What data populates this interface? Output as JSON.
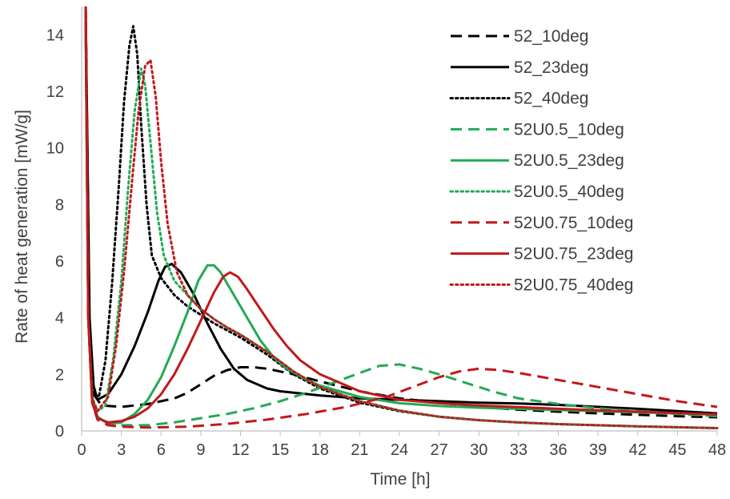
{
  "chart_data": {
    "type": "line",
    "xlabel": "Time [h]",
    "ylabel": "Rate of heat generation [mW/g]",
    "xlim": [
      0,
      48
    ],
    "ylim": [
      0,
      15
    ],
    "x_ticks": [
      "0",
      "3",
      "6",
      "9",
      "12",
      "15",
      "18",
      "21",
      "24",
      "27",
      "30",
      "33",
      "36",
      "39",
      "42",
      "45",
      "48"
    ],
    "y_ticks": [
      "0",
      "2",
      "4",
      "6",
      "8",
      "10",
      "12",
      "14"
    ],
    "grid": false,
    "legend_position": "top-right",
    "series": [
      {
        "name": "52_10deg",
        "color": "#000000",
        "dash": "dashed",
        "points": [
          [
            0.3,
            15
          ],
          [
            0.6,
            3
          ],
          [
            0.9,
            1.3
          ],
          [
            1.5,
            0.9
          ],
          [
            3,
            0.85
          ],
          [
            5,
            0.95
          ],
          [
            7,
            1.15
          ],
          [
            8,
            1.35
          ],
          [
            9,
            1.65
          ],
          [
            10,
            1.95
          ],
          [
            11,
            2.15
          ],
          [
            12,
            2.25
          ],
          [
            13,
            2.25
          ],
          [
            14,
            2.2
          ],
          [
            15,
            2.1
          ],
          [
            16,
            2.0
          ],
          [
            18,
            1.75
          ],
          [
            21,
            1.4
          ],
          [
            24,
            1.15
          ],
          [
            27,
            1.0
          ],
          [
            30,
            0.85
          ],
          [
            33,
            0.75
          ],
          [
            36,
            0.68
          ],
          [
            39,
            0.62
          ],
          [
            42,
            0.57
          ],
          [
            45,
            0.52
          ],
          [
            48,
            0.48
          ]
        ]
      },
      {
        "name": "52_23deg",
        "color": "#000000",
        "dash": "solid",
        "points": [
          [
            0.3,
            15
          ],
          [
            0.6,
            4
          ],
          [
            0.9,
            1.6
          ],
          [
            1.2,
            1.1
          ],
          [
            2,
            1.3
          ],
          [
            3,
            2.0
          ],
          [
            4,
            3.0
          ],
          [
            5,
            4.2
          ],
          [
            5.8,
            5.3
          ],
          [
            6.3,
            5.8
          ],
          [
            6.8,
            5.9
          ],
          [
            7.5,
            5.6
          ],
          [
            8.5,
            4.8
          ],
          [
            9.5,
            3.8
          ],
          [
            10.5,
            2.9
          ],
          [
            11.5,
            2.2
          ],
          [
            12.5,
            1.8
          ],
          [
            14,
            1.5
          ],
          [
            15,
            1.4
          ],
          [
            18,
            1.25
          ],
          [
            21,
            1.15
          ],
          [
            24,
            1.1
          ],
          [
            27,
            1.05
          ],
          [
            30,
            1.0
          ],
          [
            33,
            0.97
          ],
          [
            36,
            0.92
          ],
          [
            39,
            0.85
          ],
          [
            42,
            0.78
          ],
          [
            45,
            0.7
          ],
          [
            48,
            0.62
          ]
        ]
      },
      {
        "name": "52_40deg",
        "color": "#000000",
        "dash": "dotted",
        "points": [
          [
            0.3,
            15
          ],
          [
            0.6,
            3
          ],
          [
            0.9,
            1.3
          ],
          [
            1.3,
            1.2
          ],
          [
            1.8,
            2.5
          ],
          [
            2.3,
            5.2
          ],
          [
            2.8,
            8.6
          ],
          [
            3.2,
            11.6
          ],
          [
            3.6,
            13.6
          ],
          [
            3.9,
            14.3
          ],
          [
            4.2,
            13.3
          ],
          [
            4.5,
            10.8
          ],
          [
            4.9,
            8.0
          ],
          [
            5.3,
            6.2
          ],
          [
            6,
            5.4
          ],
          [
            7,
            4.8
          ],
          [
            8,
            4.4
          ],
          [
            9,
            4.1
          ],
          [
            10,
            3.8
          ],
          [
            11,
            3.55
          ],
          [
            12,
            3.3
          ],
          [
            13,
            3.0
          ],
          [
            14,
            2.7
          ],
          [
            15,
            2.35
          ],
          [
            16,
            2.0
          ],
          [
            18,
            1.5
          ],
          [
            21,
            1.0
          ],
          [
            24,
            0.7
          ],
          [
            27,
            0.5
          ],
          [
            30,
            0.38
          ],
          [
            33,
            0.3
          ],
          [
            36,
            0.24
          ],
          [
            39,
            0.2
          ],
          [
            42,
            0.16
          ],
          [
            45,
            0.13
          ],
          [
            48,
            0.1
          ]
        ]
      },
      {
        "name": "52U0.5_10deg",
        "color": "#22aa55",
        "dash": "dashed",
        "points": [
          [
            0.3,
            14.5
          ],
          [
            0.5,
            4
          ],
          [
            0.8,
            1.2
          ],
          [
            1.2,
            0.5
          ],
          [
            2,
            0.25
          ],
          [
            3,
            0.2
          ],
          [
            5,
            0.2
          ],
          [
            7,
            0.3
          ],
          [
            9,
            0.45
          ],
          [
            11,
            0.6
          ],
          [
            13,
            0.8
          ],
          [
            15,
            1.05
          ],
          [
            17,
            1.35
          ],
          [
            19,
            1.7
          ],
          [
            21,
            2.05
          ],
          [
            22.5,
            2.3
          ],
          [
            24,
            2.35
          ],
          [
            25.5,
            2.2
          ],
          [
            27,
            2.0
          ],
          [
            29,
            1.7
          ],
          [
            31,
            1.4
          ],
          [
            33,
            1.15
          ],
          [
            36,
            0.95
          ],
          [
            39,
            0.8
          ],
          [
            42,
            0.7
          ],
          [
            45,
            0.6
          ],
          [
            48,
            0.52
          ]
        ]
      },
      {
        "name": "52U0.5_23deg",
        "color": "#22aa55",
        "dash": "solid",
        "points": [
          [
            0.3,
            14.5
          ],
          [
            0.5,
            4
          ],
          [
            0.8,
            1.0
          ],
          [
            1.2,
            0.5
          ],
          [
            2,
            0.25
          ],
          [
            3,
            0.3
          ],
          [
            4,
            0.6
          ],
          [
            5,
            1.1
          ],
          [
            6,
            1.9
          ],
          [
            7,
            3.0
          ],
          [
            8,
            4.2
          ],
          [
            8.8,
            5.3
          ],
          [
            9.5,
            5.85
          ],
          [
            10,
            5.85
          ],
          [
            10.5,
            5.6
          ],
          [
            11.5,
            4.8
          ],
          [
            12.5,
            4.0
          ],
          [
            13.5,
            3.2
          ],
          [
            14.5,
            2.6
          ],
          [
            15.5,
            2.2
          ],
          [
            17,
            1.8
          ],
          [
            18,
            1.6
          ],
          [
            21,
            1.2
          ],
          [
            24,
            0.98
          ],
          [
            27,
            0.88
          ],
          [
            30,
            0.82
          ],
          [
            33,
            0.78
          ],
          [
            36,
            0.74
          ],
          [
            39,
            0.7
          ],
          [
            42,
            0.66
          ],
          [
            45,
            0.62
          ],
          [
            48,
            0.58
          ]
        ]
      },
      {
        "name": "52U0.5_40deg",
        "color": "#22aa55",
        "dash": "dotted",
        "points": [
          [
            0.3,
            14.5
          ],
          [
            0.5,
            4
          ],
          [
            0.8,
            1.2
          ],
          [
            1.2,
            0.7
          ],
          [
            1.8,
            0.9
          ],
          [
            2.4,
            2.6
          ],
          [
            3,
            5.3
          ],
          [
            3.5,
            8.5
          ],
          [
            4,
            11.3
          ],
          [
            4.5,
            12.8
          ],
          [
            4.8,
            12.2
          ],
          [
            5.2,
            10.2
          ],
          [
            5.7,
            7.7
          ],
          [
            6.2,
            6.2
          ],
          [
            7,
            5.3
          ],
          [
            8,
            4.8
          ],
          [
            9,
            4.3
          ],
          [
            10,
            3.95
          ],
          [
            11,
            3.65
          ],
          [
            12,
            3.4
          ],
          [
            13,
            3.1
          ],
          [
            14,
            2.8
          ],
          [
            15,
            2.45
          ],
          [
            16,
            2.1
          ],
          [
            18,
            1.55
          ],
          [
            21,
            1.05
          ],
          [
            24,
            0.72
          ],
          [
            27,
            0.5
          ],
          [
            30,
            0.38
          ],
          [
            33,
            0.3
          ],
          [
            36,
            0.24
          ],
          [
            39,
            0.2
          ],
          [
            42,
            0.16
          ],
          [
            45,
            0.13
          ],
          [
            48,
            0.1
          ]
        ]
      },
      {
        "name": "52U0.75_10deg",
        "color": "#c0191c",
        "dash": "dashed",
        "points": [
          [
            0.3,
            15
          ],
          [
            0.5,
            4
          ],
          [
            0.8,
            1.0
          ],
          [
            1.2,
            0.4
          ],
          [
            2,
            0.2
          ],
          [
            3,
            0.15
          ],
          [
            5,
            0.12
          ],
          [
            8,
            0.15
          ],
          [
            11,
            0.25
          ],
          [
            14,
            0.4
          ],
          [
            17,
            0.6
          ],
          [
            20,
            0.85
          ],
          [
            23,
            1.2
          ],
          [
            25,
            1.55
          ],
          [
            27,
            1.9
          ],
          [
            28.5,
            2.1
          ],
          [
            30,
            2.2
          ],
          [
            31.5,
            2.15
          ],
          [
            33,
            2.05
          ],
          [
            36,
            1.8
          ],
          [
            39,
            1.55
          ],
          [
            42,
            1.3
          ],
          [
            45,
            1.05
          ],
          [
            48,
            0.85
          ]
        ]
      },
      {
        "name": "52U0.75_23deg",
        "color": "#c0191c",
        "dash": "solid",
        "points": [
          [
            0.3,
            15
          ],
          [
            0.5,
            4
          ],
          [
            0.8,
            1.0
          ],
          [
            1.2,
            0.45
          ],
          [
            2,
            0.3
          ],
          [
            3,
            0.35
          ],
          [
            4,
            0.5
          ],
          [
            5,
            0.8
          ],
          [
            6,
            1.3
          ],
          [
            7,
            2.0
          ],
          [
            8,
            2.9
          ],
          [
            9,
            3.9
          ],
          [
            10,
            4.9
          ],
          [
            10.7,
            5.45
          ],
          [
            11.2,
            5.6
          ],
          [
            11.8,
            5.45
          ],
          [
            12.5,
            5.0
          ],
          [
            13.5,
            4.3
          ],
          [
            14.5,
            3.6
          ],
          [
            15.5,
            3.0
          ],
          [
            16.5,
            2.5
          ],
          [
            18,
            2.0
          ],
          [
            21,
            1.4
          ],
          [
            24,
            1.1
          ],
          [
            27,
            0.98
          ],
          [
            30,
            0.9
          ],
          [
            33,
            0.84
          ],
          [
            36,
            0.78
          ],
          [
            39,
            0.73
          ],
          [
            42,
            0.68
          ],
          [
            45,
            0.63
          ],
          [
            48,
            0.58
          ]
        ]
      },
      {
        "name": "52U0.75_40deg",
        "color": "#c0191c",
        "dash": "dotted",
        "points": [
          [
            0.3,
            15
          ],
          [
            0.5,
            4
          ],
          [
            0.8,
            1.1
          ],
          [
            1.2,
            0.7
          ],
          [
            2,
            1.2
          ],
          [
            2.6,
            3.0
          ],
          [
            3.2,
            5.6
          ],
          [
            3.8,
            8.8
          ],
          [
            4.3,
            11.3
          ],
          [
            4.8,
            12.9
          ],
          [
            5.2,
            13.1
          ],
          [
            5.6,
            11.8
          ],
          [
            6,
            9.5
          ],
          [
            6.5,
            7.3
          ],
          [
            7.2,
            5.6
          ],
          [
            8,
            4.8
          ],
          [
            9,
            4.3
          ],
          [
            10,
            3.95
          ],
          [
            11,
            3.65
          ],
          [
            12,
            3.4
          ],
          [
            13,
            3.1
          ],
          [
            14,
            2.8
          ],
          [
            15,
            2.45
          ],
          [
            16,
            2.1
          ],
          [
            18,
            1.55
          ],
          [
            21,
            1.05
          ],
          [
            24,
            0.72
          ],
          [
            27,
            0.5
          ],
          [
            30,
            0.38
          ],
          [
            33,
            0.3
          ],
          [
            36,
            0.24
          ],
          [
            39,
            0.2
          ],
          [
            42,
            0.16
          ],
          [
            45,
            0.13
          ],
          [
            48,
            0.1
          ]
        ]
      }
    ]
  }
}
